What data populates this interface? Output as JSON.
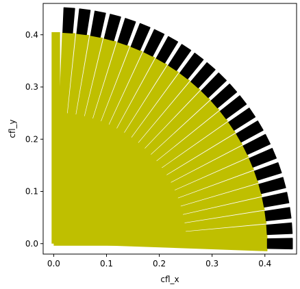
{
  "chart_data": {
    "type": "scatter",
    "title": "",
    "xlabel": "cfl_x",
    "ylabel": "cfl_y",
    "xlim": [
      -0.02,
      0.46
    ],
    "ylim": [
      -0.02,
      0.46
    ],
    "xticks": [
      0.0,
      0.1,
      0.2,
      0.3,
      0.4
    ],
    "yticks": [
      0.0,
      0.1,
      0.2,
      0.3,
      0.4
    ],
    "tick_labels_x": [
      "0.0",
      "0.1",
      "0.2",
      "0.3",
      "0.4"
    ],
    "tick_labels_y": [
      "0.0",
      "0.1",
      "0.2",
      "0.3",
      "0.4"
    ],
    "grid": false,
    "legend": "none",
    "series": [
      {
        "marker": "filled-region",
        "color": "#bfbf00",
        "shape": "quarter-disc",
        "radius_range": [
          0.0,
          0.405
        ],
        "angle_range_deg": [
          0,
          90
        ],
        "num_rays": 24
      },
      {
        "marker": "filled-region",
        "color": "#000000",
        "shape": "annular-segments",
        "radius_range": [
          0.405,
          0.452
        ],
        "angle_range_deg": [
          0,
          90
        ],
        "num_segments": 24
      }
    ]
  }
}
